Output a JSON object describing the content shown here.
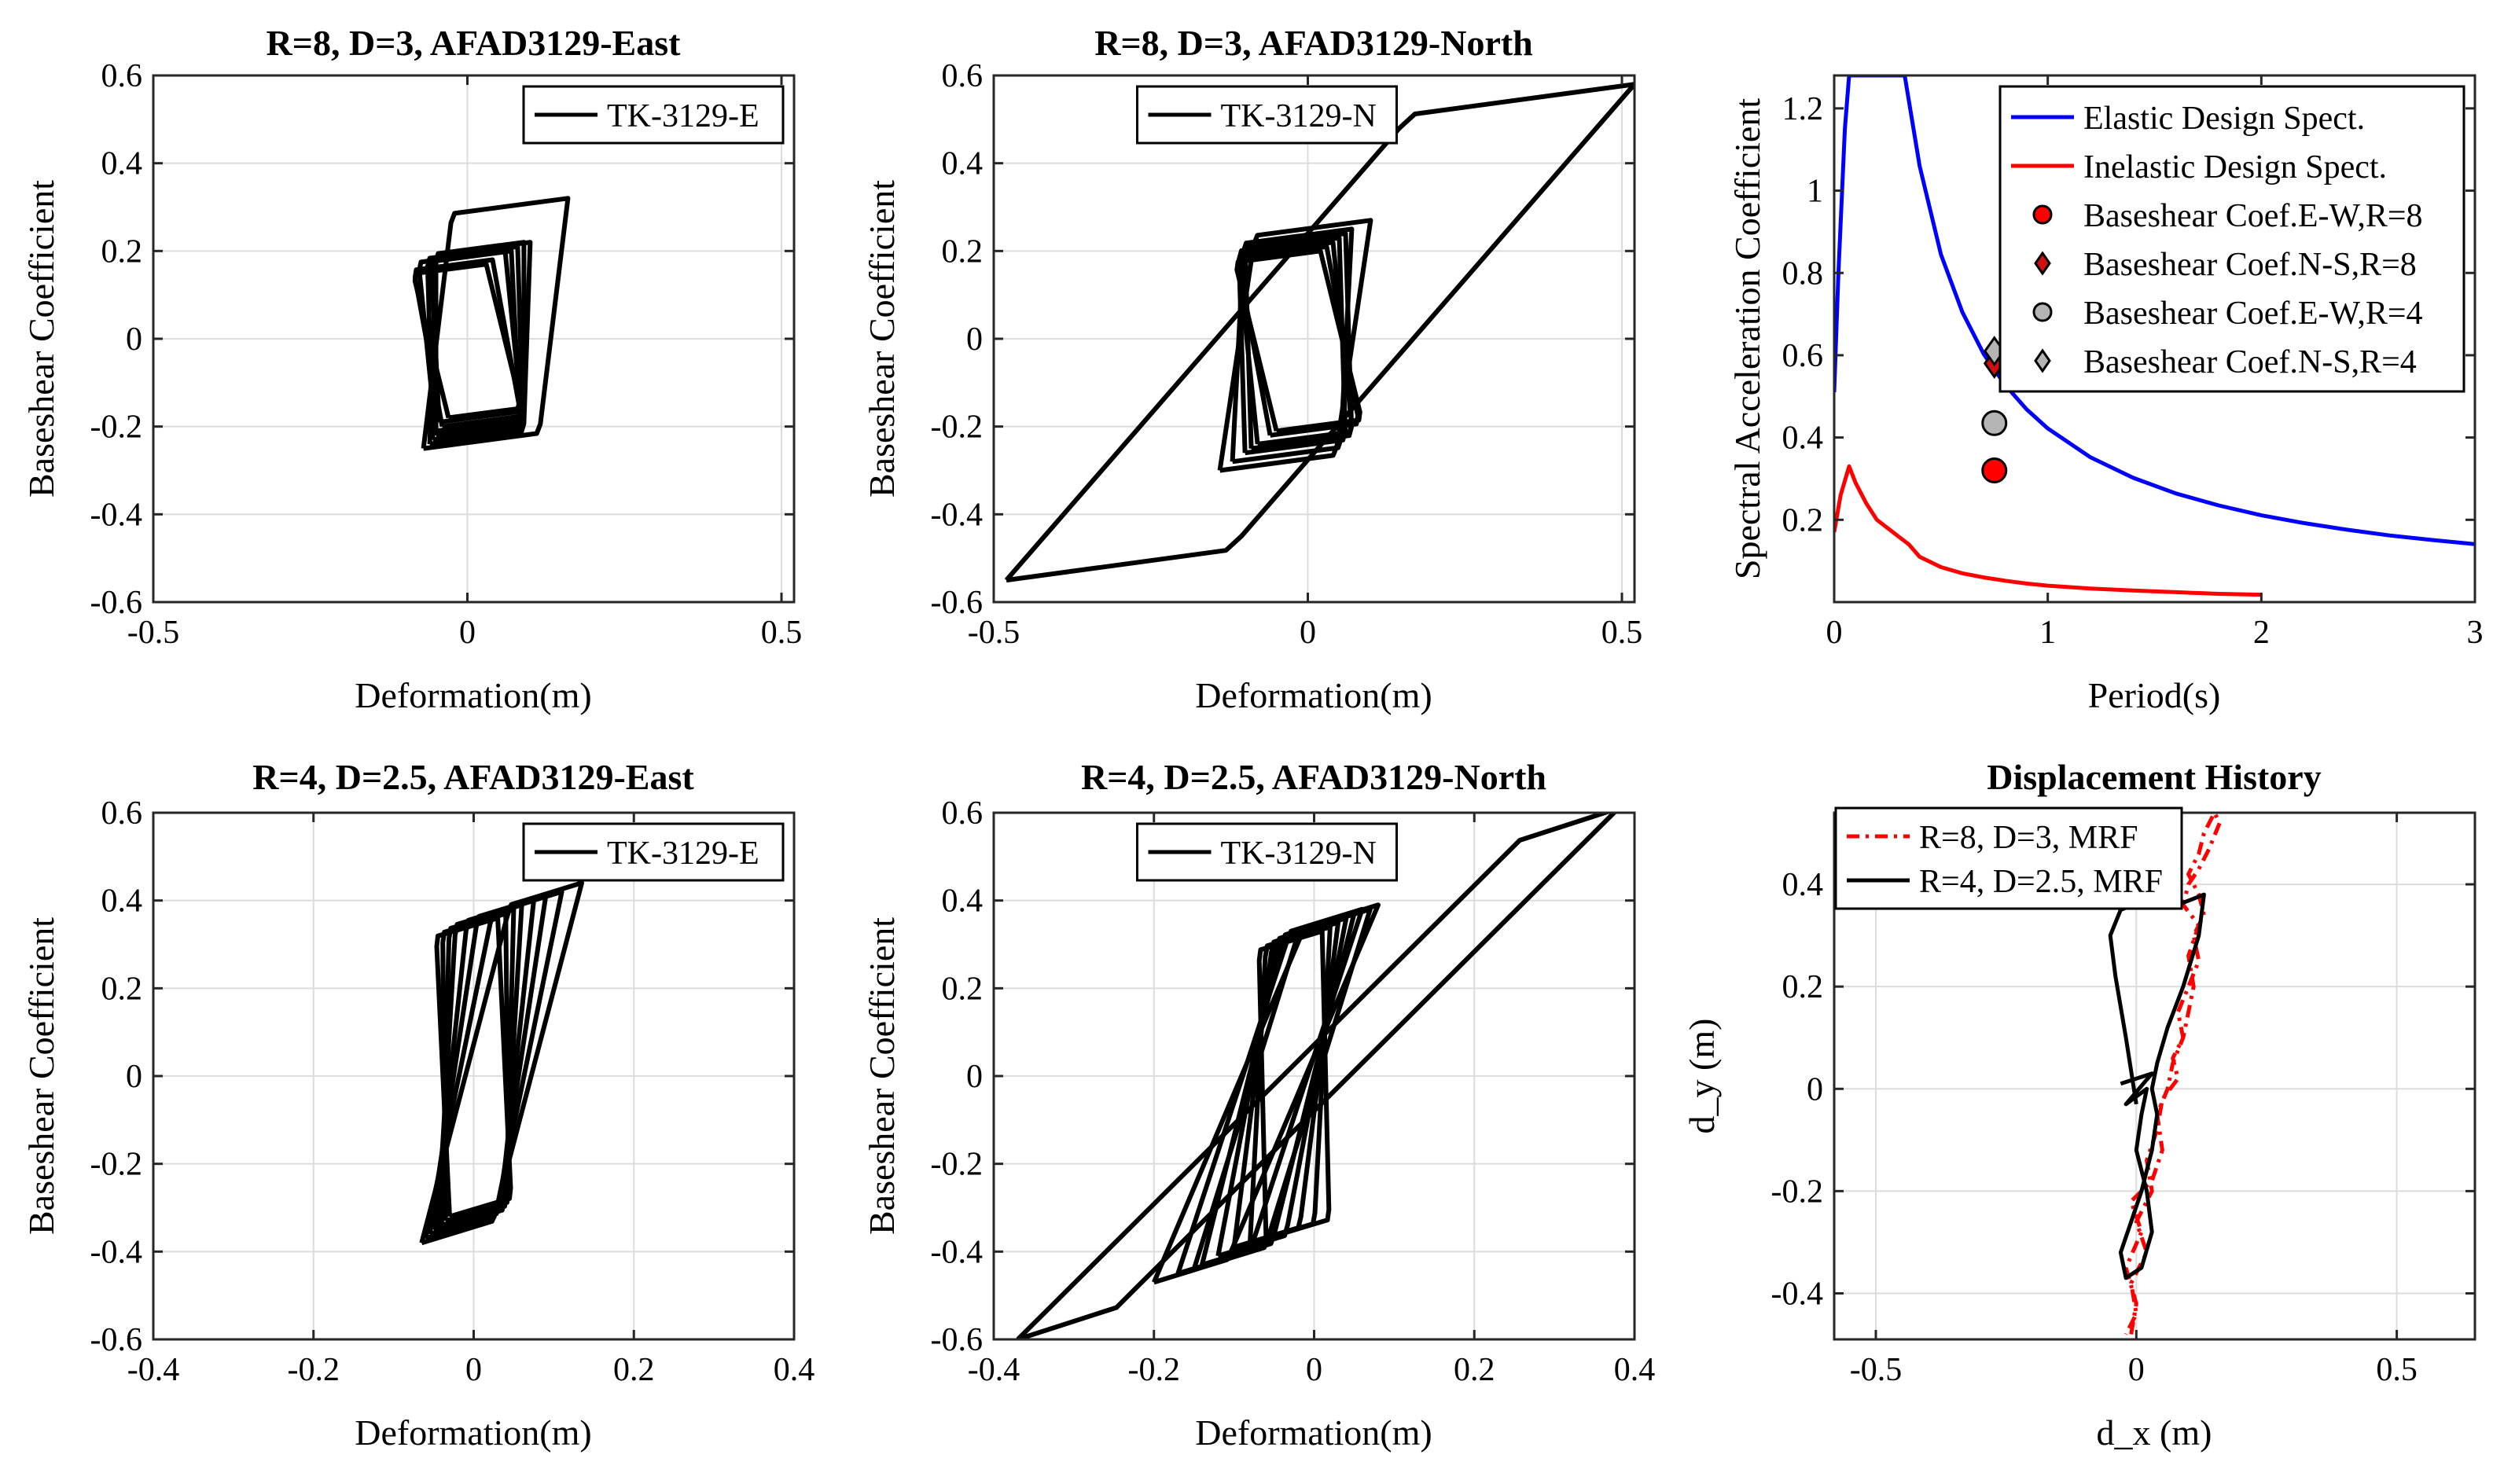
{
  "chart_data": [
    {
      "id": "p1",
      "type": "line",
      "title": "R=8, D=3, AFAD3129-East",
      "xlabel": "Deformation(m)",
      "ylabel": "Baseshear Coefficient",
      "xlim": [
        -0.5,
        0.52
      ],
      "ylim": [
        -0.6,
        0.6
      ],
      "xticks": [
        -0.5,
        0,
        0.5
      ],
      "yticks": [
        -0.6,
        -0.4,
        -0.2,
        0,
        0.2,
        0.4,
        0.6
      ],
      "grid": true,
      "legend": {
        "placement": "top-right",
        "entries": [
          "TK-3129-E"
        ]
      },
      "series": [
        {
          "name": "TK-3129-E",
          "color": "#000000",
          "hysteresis": {
            "loops": [
              {
                "xmin": -0.07,
                "ymin": -0.25,
                "xmax": 0.16,
                "ymax": 0.32,
                "k": 3.1
              },
              {
                "xmin": -0.06,
                "ymin": -0.24,
                "xmax": 0.1,
                "ymax": 0.22,
                "k": 3.1
              },
              {
                "xmin": -0.055,
                "ymin": -0.23,
                "xmax": 0.08,
                "ymax": 0.21,
                "k": 3.1
              },
              {
                "xmin": -0.05,
                "ymin": -0.22,
                "xmax": 0.06,
                "ymax": 0.2,
                "k": 3.1
              },
              {
                "xmin": -0.04,
                "ymin": -0.2,
                "xmax": 0.04,
                "ymax": 0.18,
                "k": 3.1
              },
              {
                "xmin": -0.03,
                "ymin": -0.18,
                "xmax": 0.03,
                "ymax": 0.17,
                "k": 3.1
              },
              {
                "xmin": -0.05,
                "ymin": -0.21,
                "xmax": 0.09,
                "ymax": 0.22,
                "k": 3.1
              },
              {
                "xmin": -0.045,
                "ymin": -0.19,
                "xmax": 0.07,
                "ymax": 0.2,
                "k": 3.1
              }
            ]
          }
        }
      ]
    },
    {
      "id": "p2",
      "type": "line",
      "title": "R=8, D=3, AFAD3129-North",
      "xlabel": "Deformation(m)",
      "ylabel": "Baseshear Coefficient",
      "xlim": [
        -0.5,
        0.52
      ],
      "ylim": [
        -0.6,
        0.6
      ],
      "xticks": [
        -0.5,
        0,
        0.5
      ],
      "yticks": [
        -0.6,
        -0.4,
        -0.2,
        0,
        0.2,
        0.4,
        0.6
      ],
      "grid": true,
      "legend": {
        "placement": "top-center",
        "entries": [
          "TK-3129-N"
        ]
      },
      "series": [
        {
          "name": "TK-3129-N",
          "color": "#000000",
          "hysteresis": {
            "loops": [
              {
                "xmin": -0.48,
                "ymin": -0.55,
                "xmax": 0.52,
                "ymax": 0.58,
                "k": 3.1
              },
              {
                "xmin": -0.14,
                "ymin": -0.3,
                "xmax": 0.1,
                "ymax": 0.27,
                "k": 3.1
              },
              {
                "xmin": -0.12,
                "ymin": -0.28,
                "xmax": 0.07,
                "ymax": 0.25,
                "k": 3.1
              },
              {
                "xmin": -0.1,
                "ymin": -0.26,
                "xmax": 0.05,
                "ymax": 0.23,
                "k": 3.1
              },
              {
                "xmin": -0.08,
                "ymin": -0.24,
                "xmax": 0.04,
                "ymax": 0.22,
                "k": 3.1
              },
              {
                "xmin": -0.06,
                "ymin": -0.22,
                "xmax": 0.03,
                "ymax": 0.21,
                "k": 3.1
              },
              {
                "xmin": -0.05,
                "ymin": -0.21,
                "xmax": 0.02,
                "ymax": 0.2,
                "k": 3.1
              },
              {
                "xmin": -0.09,
                "ymin": -0.25,
                "xmax": 0.06,
                "ymax": 0.24,
                "k": 3.1
              }
            ]
          }
        }
      ]
    },
    {
      "id": "p3",
      "type": "line",
      "title": "",
      "xlabel": "Period(s)",
      "ylabel": "Spectral Acceleration Coefficient",
      "xlim": [
        0,
        3
      ],
      "ylim": [
        0,
        1.28
      ],
      "xticks": [
        0,
        1,
        2,
        3
      ],
      "yticks": [
        0.2,
        0.4,
        0.6,
        0.8,
        1,
        1.2
      ],
      "grid": false,
      "legend": {
        "placement": "top-right",
        "entries": [
          "Elastic Design Spect.",
          "Inelastic Design Spect.",
          "Baseshear Coef.E-W,R=8",
          "Baseshear Coef.N-S,R=8",
          "Baseshear Coef.E-W,R=4",
          "Baseshear Coef.N-S,R=4"
        ]
      },
      "series": [
        {
          "name": "Elastic Design Spect.",
          "color": "#0000ff",
          "points": [
            [
              0,
              0.51
            ],
            [
              0.02,
              0.8
            ],
            [
              0.05,
              1.15
            ],
            [
              0.07,
              1.28
            ],
            [
              0.33,
              1.28
            ],
            [
              0.4,
              1.06
            ],
            [
              0.5,
              0.845
            ],
            [
              0.6,
              0.705
            ],
            [
              0.7,
              0.603
            ],
            [
              0.8,
              0.528
            ],
            [
              0.9,
              0.469
            ],
            [
              1,
              0.422
            ],
            [
              1.2,
              0.352
            ],
            [
              1.4,
              0.302
            ],
            [
              1.6,
              0.264
            ],
            [
              1.8,
              0.235
            ],
            [
              2,
              0.211
            ],
            [
              2.2,
              0.192
            ],
            [
              2.4,
              0.176
            ],
            [
              2.6,
              0.162
            ],
            [
              2.8,
              0.151
            ],
            [
              3,
              0.141
            ]
          ]
        },
        {
          "name": "Inelastic Design Spect.",
          "color": "#ff0000",
          "points": [
            [
              0,
              0.17
            ],
            [
              0.03,
              0.26
            ],
            [
              0.07,
              0.33
            ],
            [
              0.1,
              0.29
            ],
            [
              0.15,
              0.24
            ],
            [
              0.2,
              0.2
            ],
            [
              0.3,
              0.16
            ],
            [
              0.35,
              0.14
            ],
            [
              0.4,
              0.11
            ],
            [
              0.5,
              0.085
            ],
            [
              0.6,
              0.07
            ],
            [
              0.7,
              0.06
            ],
            [
              0.8,
              0.052
            ],
            [
              0.9,
              0.045
            ],
            [
              1,
              0.04
            ],
            [
              1.2,
              0.033
            ],
            [
              1.4,
              0.028
            ],
            [
              1.6,
              0.024
            ],
            [
              1.8,
              0.02
            ],
            [
              2,
              0.018
            ]
          ]
        },
        {
          "name": "Baseshear Coef.E-W,R=8",
          "marker": "circle",
          "color": "#ff0000",
          "points": [
            [
              0.75,
              0.32
            ]
          ]
        },
        {
          "name": "Baseshear Coef.N-S,R=8",
          "marker": "diamond",
          "color": "#d01010",
          "points": [
            [
              0.75,
              0.58
            ]
          ]
        },
        {
          "name": "Baseshear Coef.E-W,R=4",
          "marker": "circle",
          "color": "#b4b4b4",
          "points": [
            [
              0.75,
              0.435
            ]
          ]
        },
        {
          "name": "Baseshear Coef.N-S,R=4",
          "marker": "diamond",
          "color": "#b4b4b4",
          "points": [
            [
              0.75,
              0.61
            ]
          ]
        }
      ]
    },
    {
      "id": "p4",
      "type": "line",
      "title": "R=4, D=2.5, AFAD3129-East",
      "xlabel": "Deformation(m)",
      "ylabel": "Baseshear Coefficient",
      "xlim": [
        -0.4,
        0.4
      ],
      "ylim": [
        -0.6,
        0.6
      ],
      "xticks": [
        -0.4,
        -0.2,
        0,
        0.2,
        0.4
      ],
      "yticks": [
        -0.6,
        -0.4,
        -0.2,
        0,
        0.2,
        0.4,
        0.6
      ],
      "grid": true,
      "legend": {
        "placement": "top-right",
        "entries": [
          "TK-3129-E"
        ]
      },
      "series": [
        {
          "name": "TK-3129-E",
          "color": "#000000",
          "hysteresis": {
            "loops": [
              {
                "xmin": -0.065,
                "ymin": -0.38,
                "xmax": 0.135,
                "ymax": 0.44,
                "k": 9
              },
              {
                "xmin": -0.06,
                "ymin": -0.37,
                "xmax": 0.11,
                "ymax": 0.42,
                "k": 9
              },
              {
                "xmin": -0.055,
                "ymin": -0.36,
                "xmax": 0.09,
                "ymax": 0.41,
                "k": 9
              },
              {
                "xmin": -0.05,
                "ymin": -0.35,
                "xmax": 0.075,
                "ymax": 0.4,
                "k": 9
              },
              {
                "xmin": -0.045,
                "ymin": -0.35,
                "xmax": 0.06,
                "ymax": 0.39,
                "k": 9
              },
              {
                "xmin": -0.04,
                "ymin": -0.34,
                "xmax": 0.05,
                "ymax": 0.38,
                "k": 9
              },
              {
                "xmin": -0.035,
                "ymin": -0.33,
                "xmax": 0.04,
                "ymax": 0.37,
                "k": 9
              },
              {
                "xmin": -0.03,
                "ymin": -0.32,
                "xmax": 0.03,
                "ymax": 0.36,
                "k": 9
              }
            ]
          }
        }
      ]
    },
    {
      "id": "p5",
      "type": "line",
      "title": "R=4, D=2.5, AFAD3129-North",
      "xlabel": "Deformation(m)",
      "ylabel": "Baseshear Coefficient",
      "xlim": [
        -0.4,
        0.4
      ],
      "ylim": [
        -0.6,
        0.6
      ],
      "xticks": [
        -0.4,
        -0.2,
        0,
        0.2,
        0.4
      ],
      "yticks": [
        -0.6,
        -0.4,
        -0.2,
        0,
        0.2,
        0.4,
        0.6
      ],
      "grid": true,
      "legend": {
        "placement": "top-center",
        "entries": [
          "TK-3129-N"
        ]
      },
      "series": [
        {
          "name": "TK-3129-N",
          "color": "#000000",
          "hysteresis": {
            "loops": [
              {
                "xmin": -0.37,
                "ymin": -0.6,
                "xmax": 0.38,
                "ymax": 0.61,
                "k": 9
              },
              {
                "xmin": -0.2,
                "ymin": -0.47,
                "xmax": 0.08,
                "ymax": 0.39,
                "k": 9
              },
              {
                "xmin": -0.17,
                "ymin": -0.45,
                "xmax": 0.06,
                "ymax": 0.38,
                "k": 9
              },
              {
                "xmin": -0.14,
                "ymin": -0.43,
                "xmax": 0.05,
                "ymax": 0.37,
                "k": 9
              },
              {
                "xmin": -0.12,
                "ymin": -0.41,
                "xmax": 0.04,
                "ymax": 0.36,
                "k": 9
              },
              {
                "xmin": -0.1,
                "ymin": -0.39,
                "xmax": 0.03,
                "ymax": 0.35,
                "k": 9
              },
              {
                "xmin": -0.08,
                "ymin": -0.38,
                "xmax": 0.02,
                "ymax": 0.34,
                "k": 9
              },
              {
                "xmin": -0.06,
                "ymin": -0.37,
                "xmax": 0.01,
                "ymax": 0.33,
                "k": 9
              },
              {
                "xmin": -0.15,
                "ymin": -0.44,
                "xmax": 0.07,
                "ymax": 0.38,
                "k": 9
              }
            ]
          }
        }
      ]
    },
    {
      "id": "p6",
      "type": "line",
      "title": "Displacement History",
      "xlabel": "d_x (m)",
      "ylabel": "d_y (m)",
      "xlim": [
        -0.58,
        0.65
      ],
      "ylim": [
        -0.49,
        0.54
      ],
      "xticks": [
        -0.5,
        0,
        0.5
      ],
      "yticks": [
        -0.4,
        -0.2,
        0,
        0.2,
        0.4
      ],
      "grid": true,
      "legend": {
        "placement": "top-left",
        "entries": [
          "R=8, D=3, MRF",
          "R=4, D=2.5, MRF"
        ]
      },
      "series": [
        {
          "name": "R=8, D=3, MRF",
          "color": "#ff0000",
          "dash": "dashdot",
          "points": [
            [
              -0.01,
              -0.48
            ],
            [
              0.0,
              -0.42
            ],
            [
              -0.02,
              -0.35
            ],
            [
              0.01,
              -0.28
            ],
            [
              -0.01,
              -0.22
            ],
            [
              0.03,
              -0.18
            ],
            [
              0.05,
              -0.12
            ],
            [
              0.04,
              -0.05
            ],
            [
              0.06,
              0.0
            ],
            [
              0.07,
              0.05
            ],
            [
              0.09,
              0.1
            ],
            [
              0.1,
              0.15
            ],
            [
              0.11,
              0.2
            ],
            [
              0.1,
              0.26
            ],
            [
              0.12,
              0.32
            ],
            [
              0.09,
              0.36
            ],
            [
              0.1,
              0.4
            ],
            [
              0.12,
              0.43
            ],
            [
              0.14,
              0.47
            ],
            [
              0.16,
              0.52
            ],
            [
              0.15,
              0.54
            ],
            [
              0.13,
              0.5
            ],
            [
              0.12,
              0.46
            ],
            [
              0.1,
              0.42
            ],
            [
              0.12,
              0.38
            ],
            [
              0.13,
              0.34
            ],
            [
              0.11,
              0.3
            ],
            [
              0.12,
              0.25
            ],
            [
              0.1,
              0.2
            ],
            [
              0.08,
              0.15
            ],
            [
              0.09,
              0.1
            ],
            [
              0.07,
              0.06
            ],
            [
              0.08,
              0.02
            ],
            [
              0.05,
              -0.02
            ],
            [
              0.04,
              -0.08
            ],
            [
              0.02,
              -0.14
            ],
            [
              0.03,
              -0.2
            ],
            [
              0.0,
              -0.26
            ],
            [
              0.02,
              -0.32
            ],
            [
              -0.01,
              -0.38
            ],
            [
              0.0,
              -0.44
            ],
            [
              -0.02,
              -0.48
            ]
          ]
        },
        {
          "name": "R=4, D=2.5, MRF",
          "color": "#000000",
          "dash": "solid",
          "points": [
            [
              0.0,
              -0.03
            ],
            [
              -0.02,
              0.1
            ],
            [
              -0.04,
              0.22
            ],
            [
              -0.05,
              0.3
            ],
            [
              -0.03,
              0.35
            ],
            [
              0.02,
              0.37
            ],
            [
              0.08,
              0.36
            ],
            [
              0.13,
              0.38
            ],
            [
              0.12,
              0.3
            ],
            [
              0.09,
              0.2
            ],
            [
              0.06,
              0.12
            ],
            [
              0.04,
              0.05
            ],
            [
              0.03,
              0.0
            ],
            [
              0.04,
              -0.05
            ],
            [
              0.03,
              -0.12
            ],
            [
              0.01,
              -0.2
            ],
            [
              -0.01,
              -0.26
            ],
            [
              -0.03,
              -0.32
            ],
            [
              -0.02,
              -0.37
            ],
            [
              0.01,
              -0.35
            ],
            [
              0.03,
              -0.28
            ],
            [
              0.02,
              -0.2
            ],
            [
              0.0,
              -0.12
            ],
            [
              0.01,
              -0.05
            ],
            [
              0.02,
              0.0
            ],
            [
              -0.02,
              -0.03
            ],
            [
              0.03,
              0.03
            ],
            [
              -0.03,
              0.01
            ]
          ]
        }
      ]
    }
  ]
}
